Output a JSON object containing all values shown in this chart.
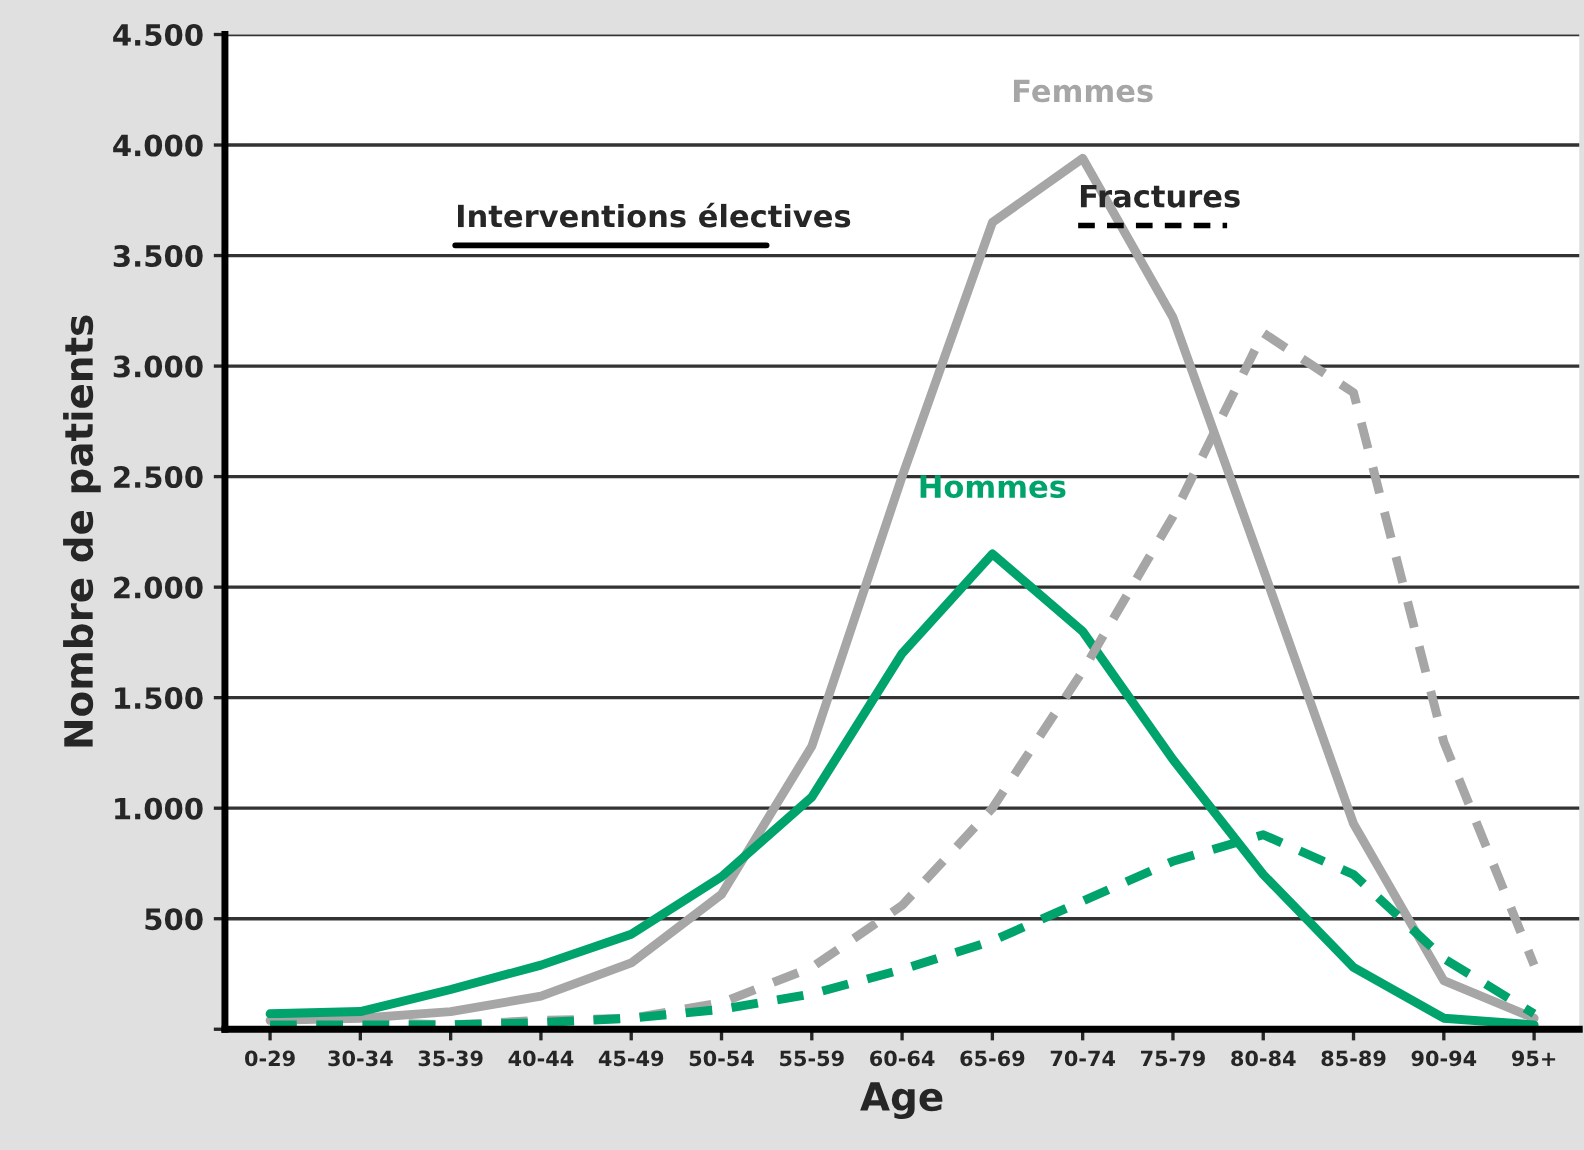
{
  "chart_data": {
    "type": "line",
    "xlabel": "Age",
    "ylabel": "Nombre de patients",
    "categories": [
      "0-29",
      "30-34",
      "35-39",
      "40-44",
      "45-49",
      "50-54",
      "55-59",
      "60-64",
      "65-69",
      "70-74",
      "75-79",
      "80-84",
      "85-89",
      "90-94",
      "95+"
    ],
    "series": [
      {
        "name": "Femmes",
        "color": "#a6a6a6",
        "line_style": "solid",
        "values": [
          40,
          50,
          80,
          150,
          300,
          610,
          1280,
          2500,
          3650,
          3940,
          3220,
          2080,
          930,
          220,
          50
        ]
      },
      {
        "name": "Hommes",
        "color": "#00a36c",
        "line_style": "solid",
        "values": [
          70,
          80,
          180,
          290,
          430,
          690,
          1050,
          1700,
          2150,
          1800,
          1220,
          700,
          280,
          50,
          20
        ]
      },
      {
        "color": "#a6a6a6",
        "line_style": "dashed",
        "values": [
          30,
          30,
          20,
          40,
          50,
          120,
          280,
          560,
          1000,
          1620,
          2320,
          3150,
          2880,
          1300,
          290
        ]
      },
      {
        "color": "#00a36c",
        "line_style": "dashed",
        "values": [
          20,
          20,
          20,
          30,
          50,
          90,
          160,
          270,
          400,
          580,
          760,
          880,
          700,
          320,
          70
        ]
      }
    ],
    "ylim": [
      0,
      4500
    ],
    "yticks": [
      {
        "value": 0,
        "label": null
      },
      {
        "value": 500,
        "label": "500"
      },
      {
        "value": 1000,
        "label": "1.000"
      },
      {
        "value": 1500,
        "label": "1.500"
      },
      {
        "value": 2000,
        "label": "2.000"
      },
      {
        "value": 2500,
        "label": "2.500"
      },
      {
        "value": 3000,
        "label": "3.000"
      },
      {
        "value": 3500,
        "label": "3.500"
      },
      {
        "value": 4000,
        "label": "4.000"
      },
      {
        "value": 4500,
        "label": "4.500"
      }
    ],
    "grid": "y",
    "legend": false,
    "marker": "none",
    "annotations": [
      "Interventions électives",
      "Fractures"
    ]
  }
}
